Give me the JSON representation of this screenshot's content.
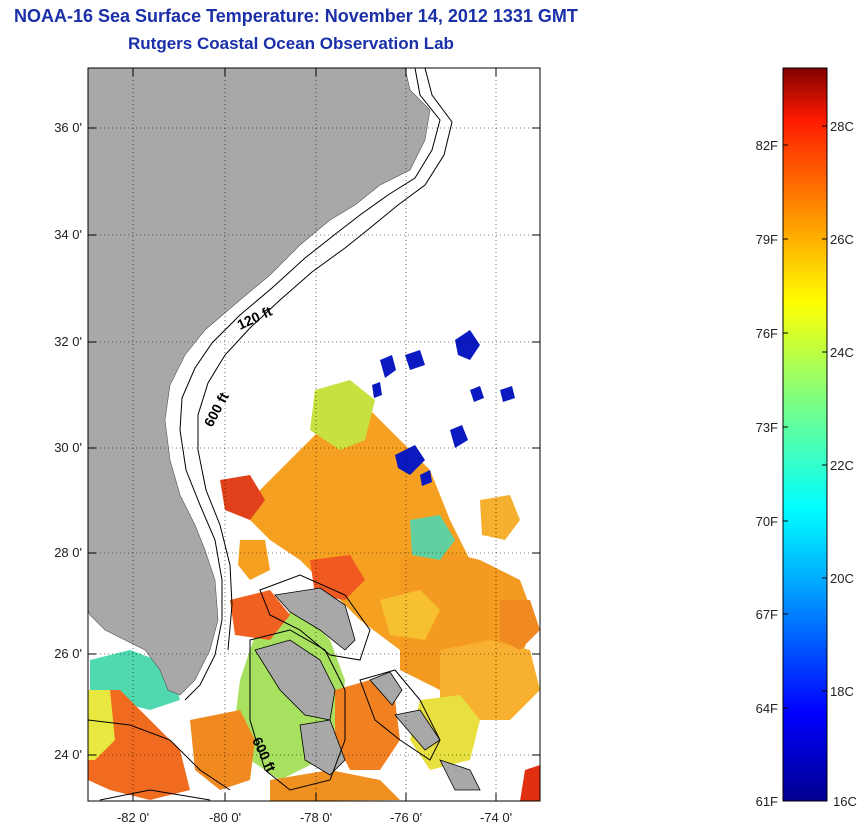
{
  "header": {
    "title": "NOAA-16 Sea Surface Temperature:  November 14, 2012 1331 GMT",
    "subtitle": "Rutgers Coastal Ocean Observation Lab"
  },
  "map": {
    "lat_ticks": [
      "36 0'",
      "34 0'",
      "32 0'",
      "30 0'",
      "28 0'",
      "26 0'",
      "24 0'"
    ],
    "lon_ticks": [
      "-82 0'",
      "-80 0'",
      "-78 0'",
      "-76 0'",
      "-74 0'"
    ],
    "contours": [
      "120 ft",
      "600 ft",
      "600 ft"
    ],
    "colors": {
      "land": "#a8a8a8",
      "frame": "#000000"
    }
  },
  "colorbar": {
    "f_labels": [
      "82F",
      "79F",
      "76F",
      "73F",
      "70F",
      "67F",
      "64F",
      "61F"
    ],
    "c_labels": [
      "28C",
      "26C",
      "24C",
      "22C",
      "20C",
      "18C",
      "16C"
    ]
  }
}
